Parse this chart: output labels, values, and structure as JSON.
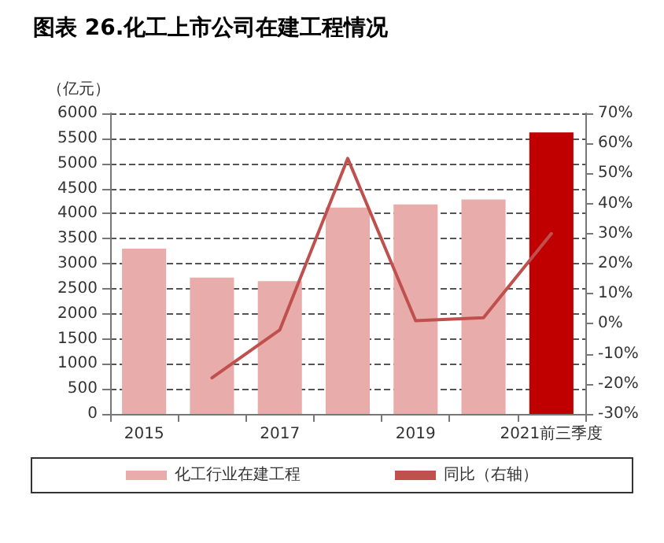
{
  "chart_data": {
    "type": "bar",
    "title": "图表 26.化工上市公司在建工程情况",
    "ylabel": "（亿元）",
    "categories": [
      "2015",
      null,
      "2017",
      null,
      "2019",
      null,
      "2021前三季度"
    ],
    "series": [
      {
        "name": "化工行业在建工程",
        "color": "#e8acab",
        "colors": [
          "#e8acab",
          "#e8acab",
          "#e8acab",
          "#e8acab",
          "#e8acab",
          "#e8acab",
          "#c00000"
        ],
        "values": [
          3300,
          2720,
          2650,
          4120,
          4180,
          4280,
          5620
        ]
      },
      {
        "name": "同比（右轴）",
        "type": "line",
        "axis": "y2",
        "color": "#c0504d",
        "values": [
          null,
          -18,
          -2,
          55,
          1,
          2,
          30
        ]
      }
    ],
    "ylim": [
      0,
      6000
    ],
    "yticks": [
      0,
      500,
      1000,
      1500,
      2000,
      2500,
      3000,
      3500,
      4000,
      4500,
      5000,
      5500,
      6000
    ],
    "y2lim": [
      -30,
      70
    ],
    "y2ticks": [
      {
        "value": -30,
        "label": "-30%"
      },
      {
        "value": -20,
        "label": "-20%"
      },
      {
        "value": -10,
        "label": "-10%"
      },
      {
        "value": 0,
        "label": "0%"
      },
      {
        "value": 10,
        "label": "10%"
      },
      {
        "value": 20,
        "label": "20%"
      },
      {
        "value": 30,
        "label": "30%"
      },
      {
        "value": 40,
        "label": "40%"
      },
      {
        "value": 50,
        "label": "50%"
      },
      {
        "value": 60,
        "label": "60%"
      },
      {
        "value": 70,
        "label": "70%"
      }
    ],
    "grid": "y",
    "legend": "bottom",
    "marker": "none",
    "line_style": "solid"
  }
}
